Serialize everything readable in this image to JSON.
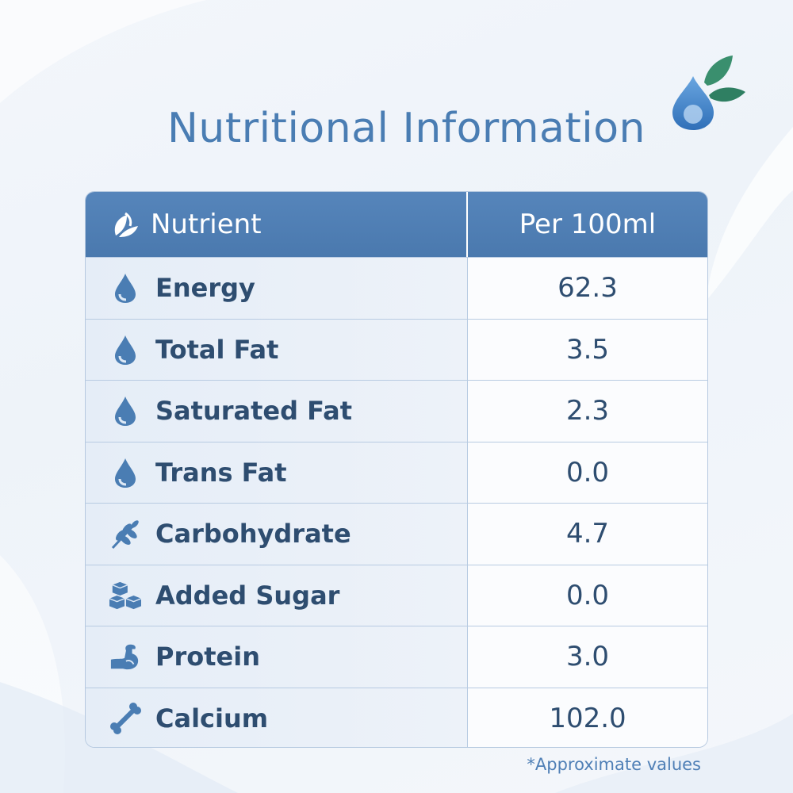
{
  "title": "Nutritional Information",
  "colors": {
    "accent": "#4a7db3",
    "header_bg": "#5685bb",
    "text_dark": "#2e4d70",
    "leaf": "#3a8f6e"
  },
  "table": {
    "header": {
      "nutrient": "Nutrient",
      "value": "Per 100ml",
      "icon": "leaf-icon"
    },
    "rows": [
      {
        "label": "Energy",
        "value": "62.3",
        "icon": "droplet-icon"
      },
      {
        "label": "Total Fat",
        "value": "3.5",
        "icon": "droplet-icon"
      },
      {
        "label": "Saturated Fat",
        "value": "2.3",
        "icon": "droplet-icon"
      },
      {
        "label": "Trans Fat",
        "value": "0.0",
        "icon": "droplet-icon"
      },
      {
        "label": "Carbohydrate",
        "value": "4.7",
        "icon": "wheat-icon"
      },
      {
        "label": "Added Sugar",
        "value": "0.0",
        "icon": "sugar-cubes-icon"
      },
      {
        "label": "Protein",
        "value": "3.0",
        "icon": "muscle-arm-icon"
      },
      {
        "label": "Calcium",
        "value": "102.0",
        "icon": "bone-icon"
      }
    ]
  },
  "footnote": "*Approximate values"
}
